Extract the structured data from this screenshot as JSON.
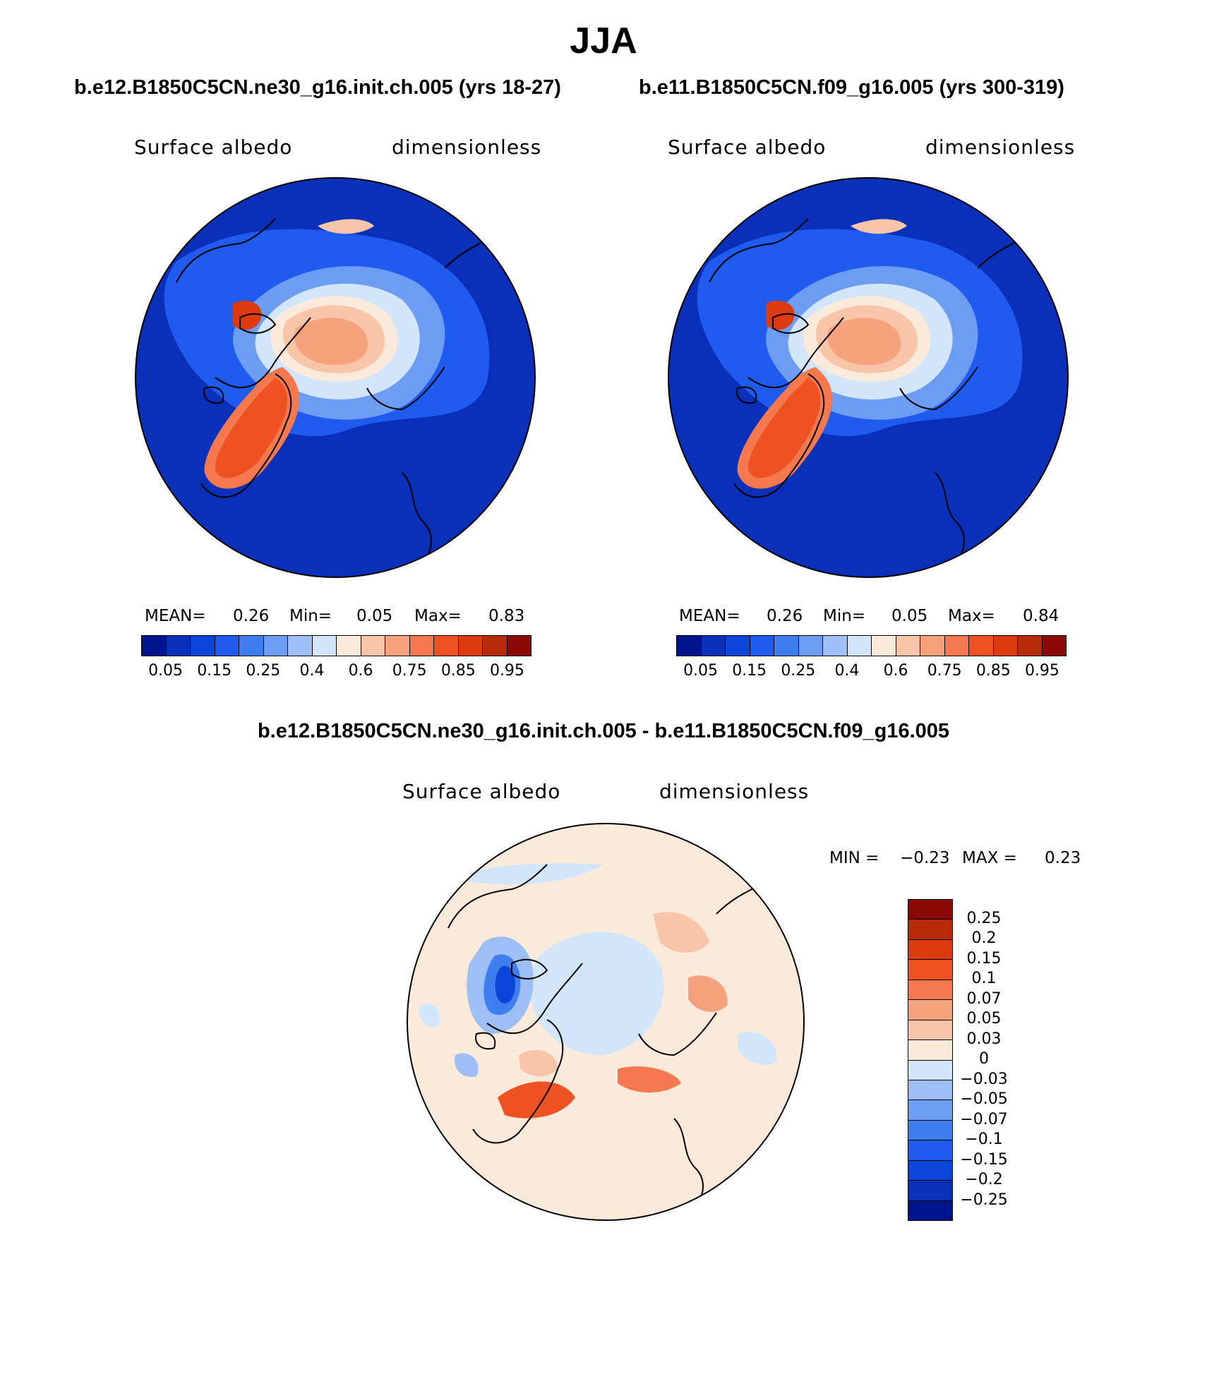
{
  "figure": {
    "title": "JJA",
    "left_case": "b.e12.B1850C5CN.ne30_g16.init.ch.005 (yrs 18-27)",
    "right_case": "b.e11.B1850C5CN.f09_g16.005 (yrs 300-319)",
    "diff_case": "b.e12.B1850C5CN.ne30_g16.init.ch.005 - b.e11.B1850C5CN.f09_g16.005"
  },
  "panels": {
    "left": {
      "variable": "Surface albedo",
      "units": "dimensionless",
      "mean_label": "MEAN=",
      "mean_value": "0.26",
      "min_label": "Min=",
      "min_value": "0.05",
      "max_label": "Max=",
      "max_value": "0.83"
    },
    "right": {
      "variable": "Surface albedo",
      "units": "dimensionless",
      "mean_label": "MEAN=",
      "mean_value": "0.26",
      "min_label": "Min=",
      "min_value": "0.05",
      "max_label": "Max=",
      "max_value": "0.84"
    },
    "diff": {
      "variable": "Surface albedo",
      "units": "dimensionless",
      "min_label": "MIN =",
      "min_value": "−0.23",
      "max_label": "MAX =",
      "max_value": "0.23"
    }
  },
  "colorbars": {
    "abs": {
      "colors": [
        "#00148c",
        "#0a2fb8",
        "#0b44d9",
        "#1f5bef",
        "#3f7ef0",
        "#6d9df2",
        "#9dbff5",
        "#d2e6fb",
        "#fbe9da",
        "#f9c5a8",
        "#f6a27c",
        "#f5784f",
        "#ef5222",
        "#dc3b10",
        "#b72a0a",
        "#8c0a06"
      ],
      "labels": [
        "0.05",
        "0.15",
        "0.25",
        "0.4",
        "0.6",
        "0.75",
        "0.85",
        "0.95"
      ]
    },
    "diff": {
      "colors": [
        "#8c0a06",
        "#b72a0a",
        "#dc3b10",
        "#ef5222",
        "#f5784f",
        "#f6a27c",
        "#f9c5a8",
        "#fbe9da",
        "#d2e6fb",
        "#9dbff5",
        "#6d9df2",
        "#3f7ef0",
        "#1f5bef",
        "#0b44d9",
        "#0a2fb8",
        "#00148c"
      ],
      "labels": [
        "0.25",
        "0.2",
        "0.15",
        "0.1",
        "0.07",
        "0.05",
        "0.03",
        "0",
        "−0.03",
        "−0.05",
        "−0.07",
        "−0.1",
        "−0.15",
        "−0.2",
        "−0.25"
      ]
    }
  }
}
